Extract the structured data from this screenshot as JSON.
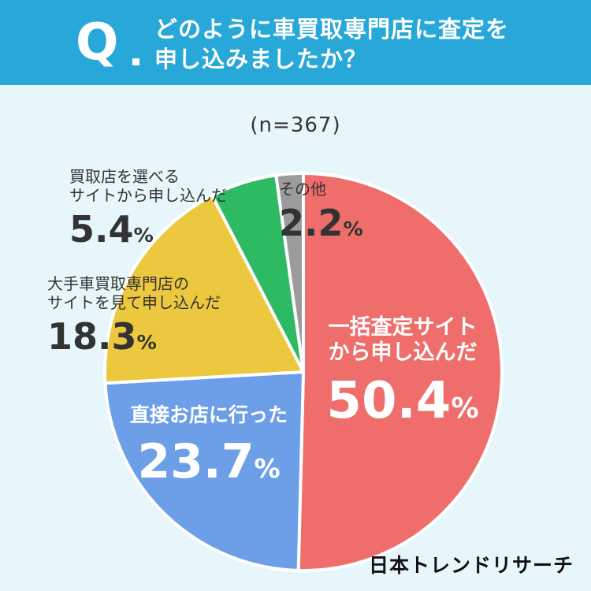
{
  "header": {
    "q_letter": "Q",
    "title_line1": "どのように車買取専門店に査定を",
    "title_line2": "申し込みましたか？"
  },
  "sample_size": "(n=367)",
  "colors": {
    "header_bg": "#27a8d8",
    "background": "#e7f6fb"
  },
  "chart_data": {
    "type": "pie",
    "title": "どのように車買取専門店に査定を申し込みましたか？",
    "subtitle": "(n=367)",
    "start_angle_deg": 0,
    "direction": "clockwise",
    "slices": [
      {
        "label": "一括査定サイトから申し込んだ",
        "label_line1": "一括査定サイト",
        "label_line2": "から申し込んだ",
        "value": 50.4,
        "display": "50.4",
        "color": "#ef6d6b"
      },
      {
        "label": "直接お店に行った",
        "label_line1": "直接お店に行った",
        "label_line2": "",
        "value": 23.7,
        "display": "23.7",
        "color": "#6c9fe8"
      },
      {
        "label": "大手車買取専門店のサイトを見て申し込んだ",
        "label_line1": "大手車買取専門店の",
        "label_line2": "サイトを見て申し込んだ",
        "value": 18.3,
        "display": "18.3",
        "color": "#ecc83f"
      },
      {
        "label": "買取店を選べるサイトから申し込んだ",
        "label_line1": "買取店を選べる",
        "label_line2": "サイトから申し込んだ",
        "value": 5.4,
        "display": "5.4",
        "color": "#2dba63"
      },
      {
        "label": "その他",
        "label_line1": "その他",
        "label_line2": "",
        "value": 2.2,
        "display": "2.2",
        "color": "#9b9b9b"
      }
    ],
    "unit": "%"
  },
  "logo_text": "日本トレンドリサーチ"
}
